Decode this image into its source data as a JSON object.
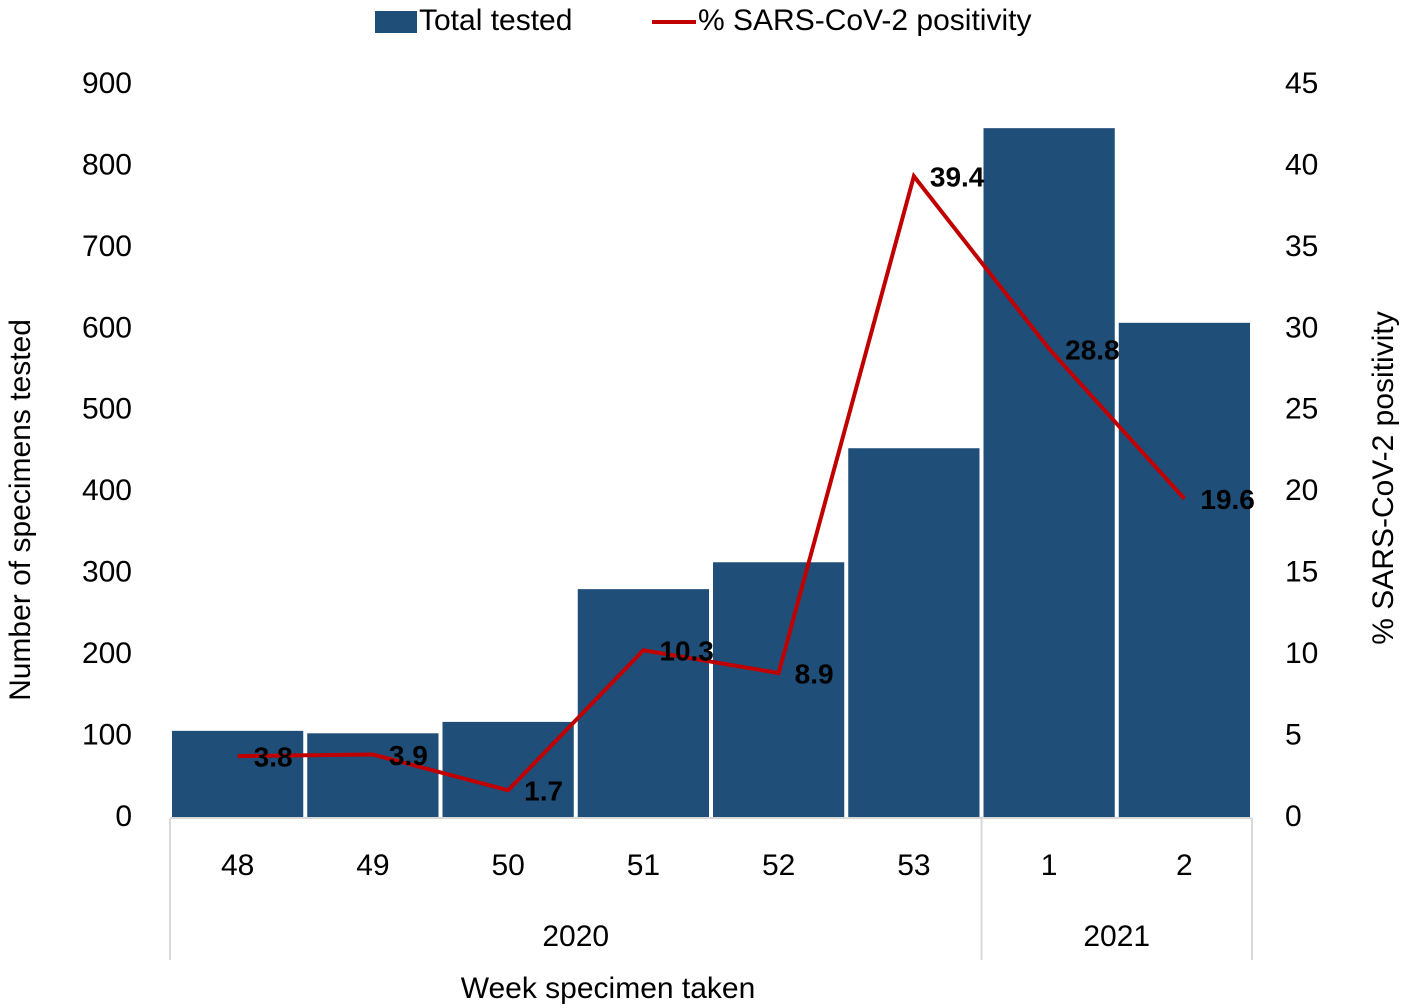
{
  "chart_data": {
    "type": "bar_line",
    "x_label": "Week specimen taken",
    "y_label": "Number of specimens tested",
    "y2_label": "% SARS-CoV-2 positivity",
    "categories": [
      "48",
      "49",
      "50",
      "51",
      "52",
      "53",
      "1",
      "2"
    ],
    "groups": [
      {
        "label": "2020",
        "span": 6
      },
      {
        "label": "2021",
        "span": 2
      }
    ],
    "series": [
      {
        "name": "Total tested",
        "type": "bar",
        "color": "#1f4e79",
        "values": [
          107,
          104,
          118,
          281,
          314,
          454,
          847,
          608
        ]
      },
      {
        "name": "% SARS-CoV-2 positivity",
        "type": "line",
        "axis": "y2",
        "color": "#c00000",
        "values": [
          3.8,
          3.9,
          1.7,
          10.3,
          8.9,
          39.4,
          28.8,
          19.6
        ]
      }
    ],
    "ylim": [
      0,
      900
    ],
    "yticks": [
      0,
      100,
      200,
      300,
      400,
      500,
      600,
      700,
      800,
      900
    ],
    "y2lim": [
      0,
      45
    ],
    "y2ticks": [
      0,
      5,
      10,
      15,
      20,
      25,
      30,
      35,
      40,
      45
    ],
    "legend": "top"
  }
}
